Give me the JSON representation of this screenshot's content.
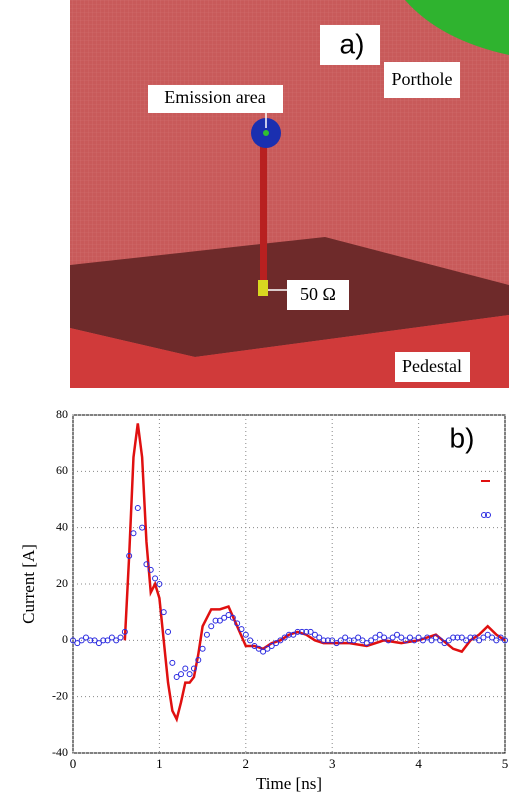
{
  "panel_a": {
    "label": "a)",
    "emission": "Emission area",
    "porthole": "Porthole",
    "resistor": "50 Ω",
    "pedestal": "Pedestal"
  },
  "chart_data": {
    "type": "line",
    "annotation": "b)",
    "x_label": "Time [ns]",
    "y_label": "Current [A]",
    "xlim": [
      0,
      5
    ],
    "ylim": [
      -40,
      80
    ],
    "xticks": [
      0,
      1,
      2,
      3,
      4,
      5
    ],
    "yticks": [
      -40,
      -20,
      0,
      20,
      40,
      60,
      80
    ],
    "grid": true,
    "series": [
      {
        "color": "#e01010",
        "style": "line",
        "x": [
          0.6,
          0.65,
          0.7,
          0.75,
          0.8,
          0.85,
          0.9,
          0.95,
          1.0,
          1.05,
          1.1,
          1.15,
          1.2,
          1.25,
          1.3,
          1.35,
          1.4,
          1.45,
          1.5,
          1.6,
          1.7,
          1.8,
          1.9,
          2.0,
          2.1,
          2.2,
          2.3,
          2.4,
          2.5,
          2.6,
          2.7,
          2.8,
          2.9,
          3.0,
          3.2,
          3.4,
          3.6,
          3.8,
          4.0,
          4.2,
          4.4,
          4.5,
          4.6,
          4.7,
          4.8,
          4.9,
          5.0
        ],
        "values": [
          0,
          30,
          65,
          77,
          65,
          35,
          17,
          20,
          15,
          0,
          -15,
          -25,
          -28,
          -22,
          -15,
          -15,
          -13,
          -5,
          5,
          11,
          11,
          12,
          5,
          -2,
          -2,
          -3,
          -1,
          0,
          2,
          3,
          2,
          0,
          -1,
          -1,
          -1,
          -2,
          0,
          -1,
          0,
          2,
          -3,
          -4,
          0,
          2,
          5,
          2,
          0
        ]
      },
      {
        "color": "#2a2ae0",
        "style": "markers",
        "x": [
          0,
          0.05,
          0.1,
          0.15,
          0.2,
          0.25,
          0.3,
          0.35,
          0.4,
          0.45,
          0.5,
          0.55,
          0.6,
          0.65,
          0.7,
          0.75,
          0.8,
          0.85,
          0.9,
          0.95,
          1.0,
          1.05,
          1.1,
          1.15,
          1.2,
          1.25,
          1.3,
          1.35,
          1.4,
          1.45,
          1.5,
          1.55,
          1.6,
          1.65,
          1.7,
          1.75,
          1.8,
          1.85,
          1.9,
          1.95,
          2.0,
          2.05,
          2.1,
          2.15,
          2.2,
          2.25,
          2.3,
          2.35,
          2.4,
          2.45,
          2.5,
          2.55,
          2.6,
          2.65,
          2.7,
          2.75,
          2.8,
          2.85,
          2.9,
          2.95,
          3.0,
          3.05,
          3.1,
          3.15,
          3.2,
          3.25,
          3.3,
          3.35,
          3.4,
          3.45,
          3.5,
          3.55,
          3.6,
          3.65,
          3.7,
          3.75,
          3.8,
          3.85,
          3.9,
          3.95,
          4.0,
          4.05,
          4.1,
          4.15,
          4.2,
          4.25,
          4.3,
          4.35,
          4.4,
          4.45,
          4.5,
          4.55,
          4.6,
          4.65,
          4.7,
          4.75,
          4.8,
          4.85,
          4.9,
          4.95,
          5.0
        ],
        "values": [
          0,
          -1,
          0,
          1,
          0,
          0,
          -1,
          0,
          0,
          1,
          0,
          1,
          3,
          30,
          38,
          47,
          40,
          27,
          25,
          22,
          20,
          10,
          3,
          -8,
          -13,
          -12,
          -10,
          -12,
          -10,
          -7,
          -3,
          2,
          5,
          7,
          7,
          8,
          9,
          8,
          6,
          4,
          2,
          0,
          -2,
          -3,
          -4,
          -3,
          -2,
          -1,
          0,
          1,
          2,
          2,
          3,
          3,
          3,
          3,
          2,
          1,
          0,
          0,
          0,
          -1,
          0,
          1,
          0,
          0,
          1,
          0,
          -1,
          0,
          1,
          2,
          1,
          0,
          1,
          2,
          1,
          0,
          1,
          0,
          1,
          0,
          1,
          0,
          1,
          0,
          -1,
          0,
          1,
          1,
          1,
          0,
          1,
          1,
          0,
          1,
          2,
          1,
          0,
          1,
          0
        ]
      }
    ]
  }
}
